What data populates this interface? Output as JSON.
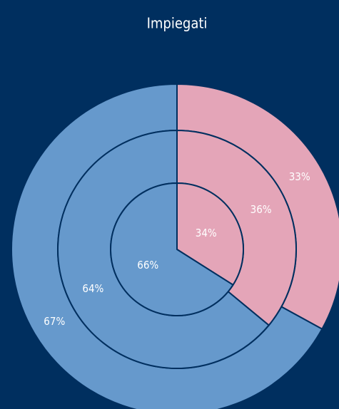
{
  "chart_data": {
    "type": "pie",
    "title": "Impiegati",
    "colors": [
      "#e4a5b8",
      "#6699cc"
    ],
    "series": [
      {
        "values": [
          34,
          66
        ],
        "value_labels": [
          "34%",
          "66%"
        ]
      },
      {
        "values": [
          36,
          64
        ],
        "value_labels": [
          "36%",
          "64%"
        ]
      },
      {
        "values": [
          33,
          67
        ],
        "value_labels": [
          "33%",
          "67%"
        ]
      }
    ]
  }
}
